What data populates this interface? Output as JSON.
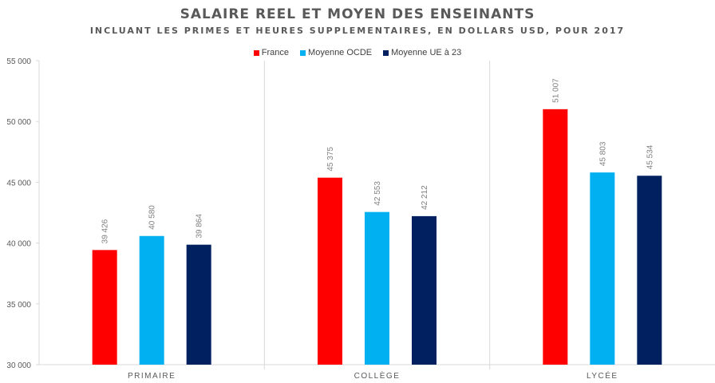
{
  "chart_data": {
    "type": "bar",
    "title": "SALAIRE REEL ET MOYEN DES ENSEINANTS",
    "subtitle": "INCLUANT LES PRIMES ET HEURES SUPPLEMENTAIRES, EN DOLLARS USD, POUR 2017",
    "xlabel": "",
    "ylabel": "",
    "categories": [
      "PRIMAIRE",
      "COLLÈGE",
      "LYCÉE"
    ],
    "series": [
      {
        "name": "France",
        "color": "#ff0000",
        "values": [
          39426,
          45375,
          51007
        ],
        "labels": [
          "39 426",
          "45 375",
          "51 007"
        ]
      },
      {
        "name": "Moyenne OCDE",
        "color": "#00b0f0",
        "values": [
          40580,
          42553,
          45803
        ],
        "labels": [
          "40 580",
          "42 553",
          "45 803"
        ]
      },
      {
        "name": "Moyenne UE à 23",
        "color": "#002060",
        "values": [
          39864,
          42212,
          45534
        ],
        "labels": [
          "39 864",
          "42 212",
          "45 534"
        ]
      }
    ],
    "ylim": [
      30000,
      55000
    ],
    "yticks": [
      30000,
      35000,
      40000,
      45000,
      50000,
      55000
    ],
    "ytick_labels": [
      "30 000",
      "35 000",
      "40 000",
      "45 000",
      "50 000",
      "55 000"
    ],
    "grid": false,
    "legend_position": "top-center"
  }
}
